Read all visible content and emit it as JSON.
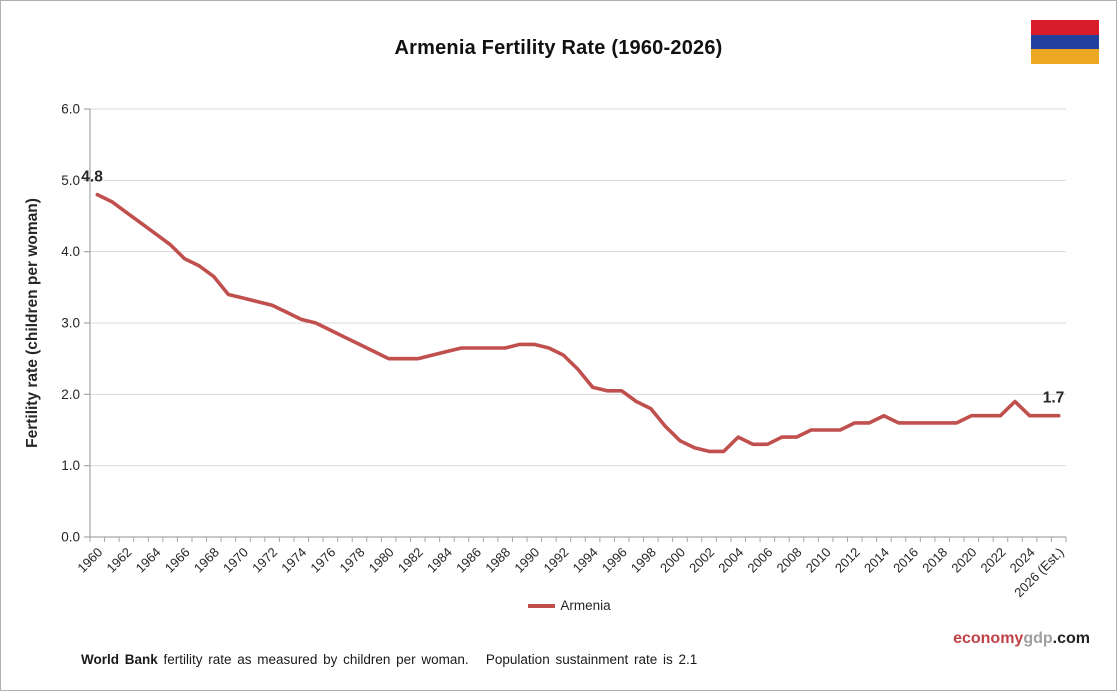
{
  "page": {
    "title": "Armenia Fertility Rate (1960-2026)"
  },
  "flag": {
    "label": "armenia-flag",
    "colors": [
      "#d81c2a",
      "#23409f",
      "#eda722"
    ]
  },
  "legend": {
    "label": "Armenia",
    "color": "#c0504d"
  },
  "brand": {
    "part1": "economy",
    "part2": "gdp",
    "part3": ".com"
  },
  "footnote": {
    "bold": "World Bank",
    "rest": " fertility rate as measured by children per woman.   Population sustainment rate is 2.1"
  },
  "chart_data": {
    "type": "line",
    "title": "Armenia Fertility Rate (1960-2026)",
    "xlabel": "",
    "ylabel": "Fertility rate (children per woman)",
    "ylim": [
      0,
      6
    ],
    "grid": "horizontal",
    "legend_position": "bottom",
    "line_color": "#c0504d",
    "grid_color": "#d9d9d9",
    "axis_color": "#a6a6a6",
    "y_ticks": [
      "0.0",
      "1.0",
      "2.0",
      "3.0",
      "4.0",
      "5.0",
      "6.0"
    ],
    "x_tick_labels": [
      "1960",
      "1962",
      "1964",
      "1966",
      "1968",
      "1970",
      "1972",
      "1974",
      "1976",
      "1978",
      "1980",
      "1982",
      "1984",
      "1986",
      "1988",
      "1990",
      "1992",
      "1994",
      "1996",
      "1998",
      "2000",
      "2002",
      "2004",
      "2006",
      "2008",
      "2010",
      "2012",
      "2014",
      "2016",
      "2018",
      "2020",
      "2022",
      "2024",
      "2026 (Est.)"
    ],
    "categories": [
      1960,
      1961,
      1962,
      1963,
      1964,
      1965,
      1966,
      1967,
      1968,
      1969,
      1970,
      1971,
      1972,
      1973,
      1974,
      1975,
      1976,
      1977,
      1978,
      1979,
      1980,
      1981,
      1982,
      1983,
      1984,
      1985,
      1986,
      1987,
      1988,
      1989,
      1990,
      1991,
      1992,
      1993,
      1994,
      1995,
      1996,
      1997,
      1998,
      1999,
      2000,
      2001,
      2002,
      2003,
      2004,
      2005,
      2006,
      2007,
      2008,
      2009,
      2010,
      2011,
      2012,
      2013,
      2014,
      2015,
      2016,
      2017,
      2018,
      2019,
      2020,
      2021,
      2022,
      2023,
      2024,
      2025,
      2026
    ],
    "series": [
      {
        "name": "Armenia",
        "values": [
          4.8,
          4.7,
          4.55,
          4.4,
          4.25,
          4.1,
          3.9,
          3.8,
          3.65,
          3.4,
          3.35,
          3.3,
          3.25,
          3.15,
          3.05,
          3.0,
          2.9,
          2.8,
          2.7,
          2.6,
          2.5,
          2.5,
          2.5,
          2.55,
          2.6,
          2.65,
          2.65,
          2.65,
          2.65,
          2.7,
          2.7,
          2.65,
          2.55,
          2.35,
          2.1,
          2.05,
          2.05,
          1.9,
          1.8,
          1.55,
          1.35,
          1.25,
          1.2,
          1.2,
          1.4,
          1.3,
          1.3,
          1.4,
          1.4,
          1.5,
          1.5,
          1.5,
          1.6,
          1.6,
          1.7,
          1.6,
          1.6,
          1.6,
          1.6,
          1.6,
          1.7,
          1.7,
          1.7,
          1.9,
          1.7,
          1.7,
          1.7
        ]
      }
    ],
    "point_labels": [
      {
        "year": 1960,
        "text": "4.8"
      },
      {
        "year": 2026,
        "text": "1.7"
      }
    ]
  }
}
